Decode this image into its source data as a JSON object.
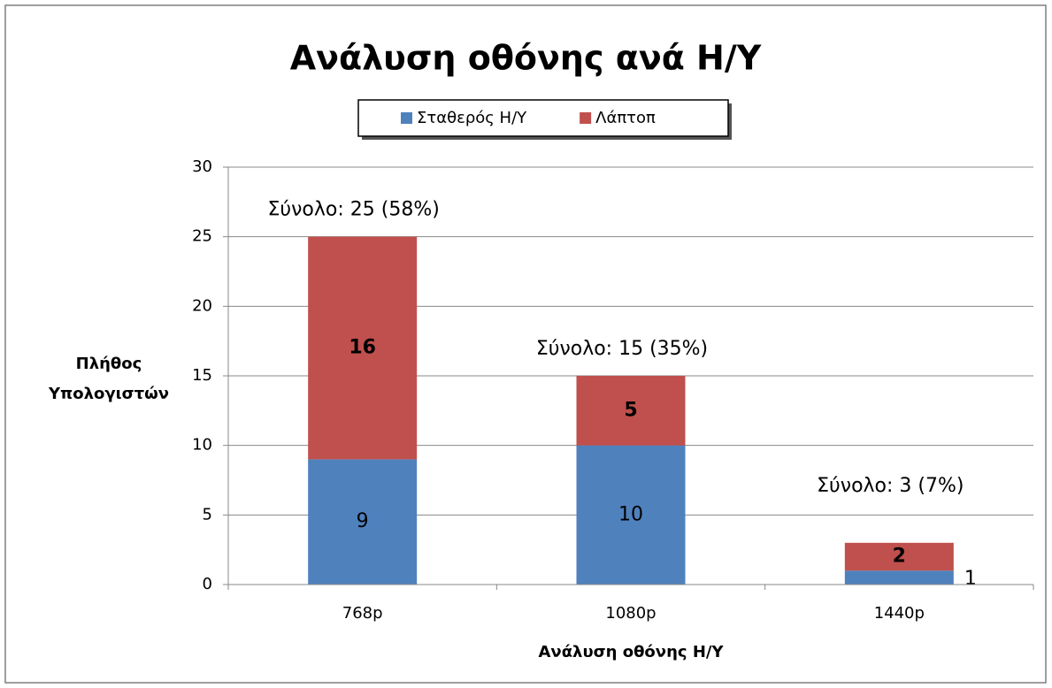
{
  "chart_data": {
    "type": "stacked_bar",
    "title": "Ανάλυση οθόνης ανά Η/Υ",
    "x_label": "Ανάλυση οθόνης Η/Υ",
    "y_label": [
      "Πλήθος",
      "Υπολογιστών"
    ],
    "categories": [
      "768p",
      "1080p",
      "1440p"
    ],
    "series": [
      {
        "name": "Σταθερός Η/Υ",
        "color": "#4f81bd",
        "values": [
          9,
          10,
          1
        ]
      },
      {
        "name": "Λάπτοπ",
        "color": "#c0504d",
        "values": [
          16,
          5,
          2
        ]
      }
    ],
    "annotations": [
      "Σύνολο:  25  (58%)",
      "Σύνολο:  15  (35%)",
      "Σύνολο:  3  (7%)"
    ],
    "ylim": [
      0,
      30
    ],
    "yticks": [
      0,
      5,
      10,
      15,
      20,
      25,
      30
    ],
    "grid": true,
    "legend": "top"
  }
}
